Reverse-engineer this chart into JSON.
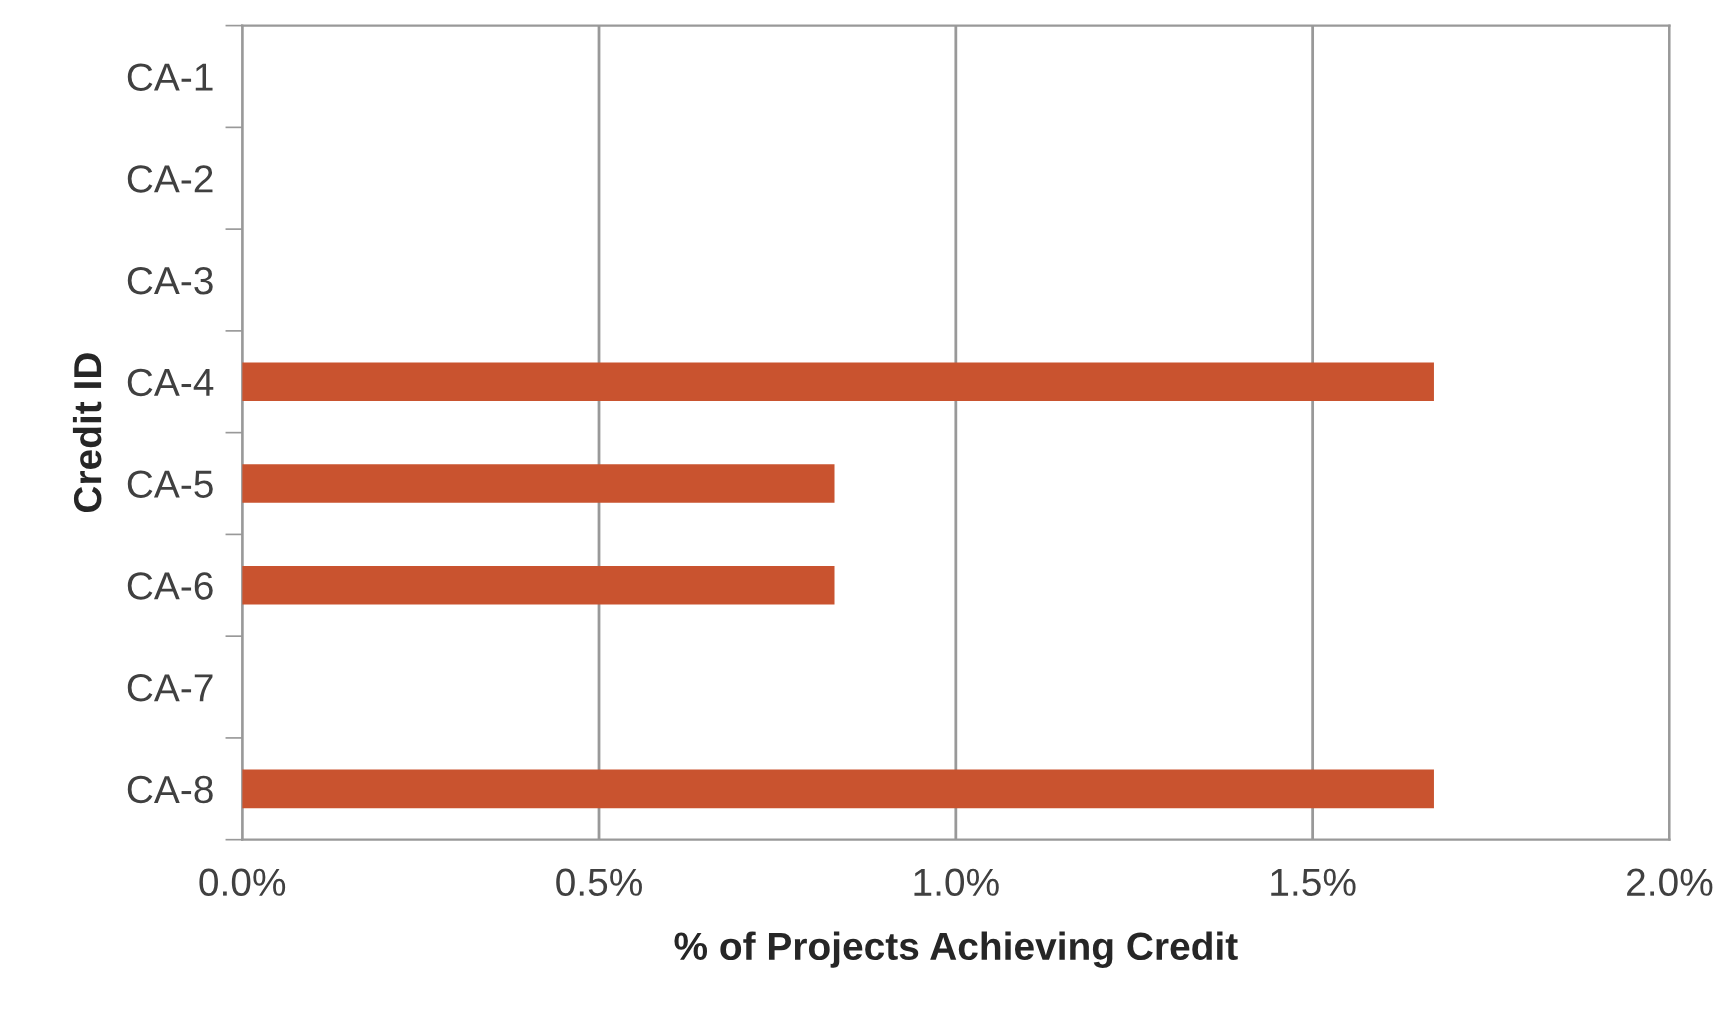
{
  "chart_data": {
    "type": "bar",
    "orientation": "horizontal",
    "categories": [
      "CA-1",
      "CA-2",
      "CA-3",
      "CA-4",
      "CA-5",
      "CA-6",
      "CA-7",
      "CA-8"
    ],
    "values": [
      0,
      0,
      0,
      1.67,
      0.83,
      0.83,
      0,
      1.67
    ],
    "color": "#c9532f",
    "xlim": [
      0,
      2
    ],
    "xticks": [
      {
        "value": 0,
        "label": "0.0%"
      },
      {
        "value": 0.5,
        "label": "0.5%"
      },
      {
        "value": 1,
        "label": "1.0%"
      },
      {
        "value": 1.5,
        "label": "1.5%"
      },
      {
        "value": 2,
        "label": "2.0%"
      }
    ],
    "xlabel": "% of Projects Achieving Credit",
    "ylabel": "Credit ID",
    "grid": "x",
    "legend": false
  }
}
